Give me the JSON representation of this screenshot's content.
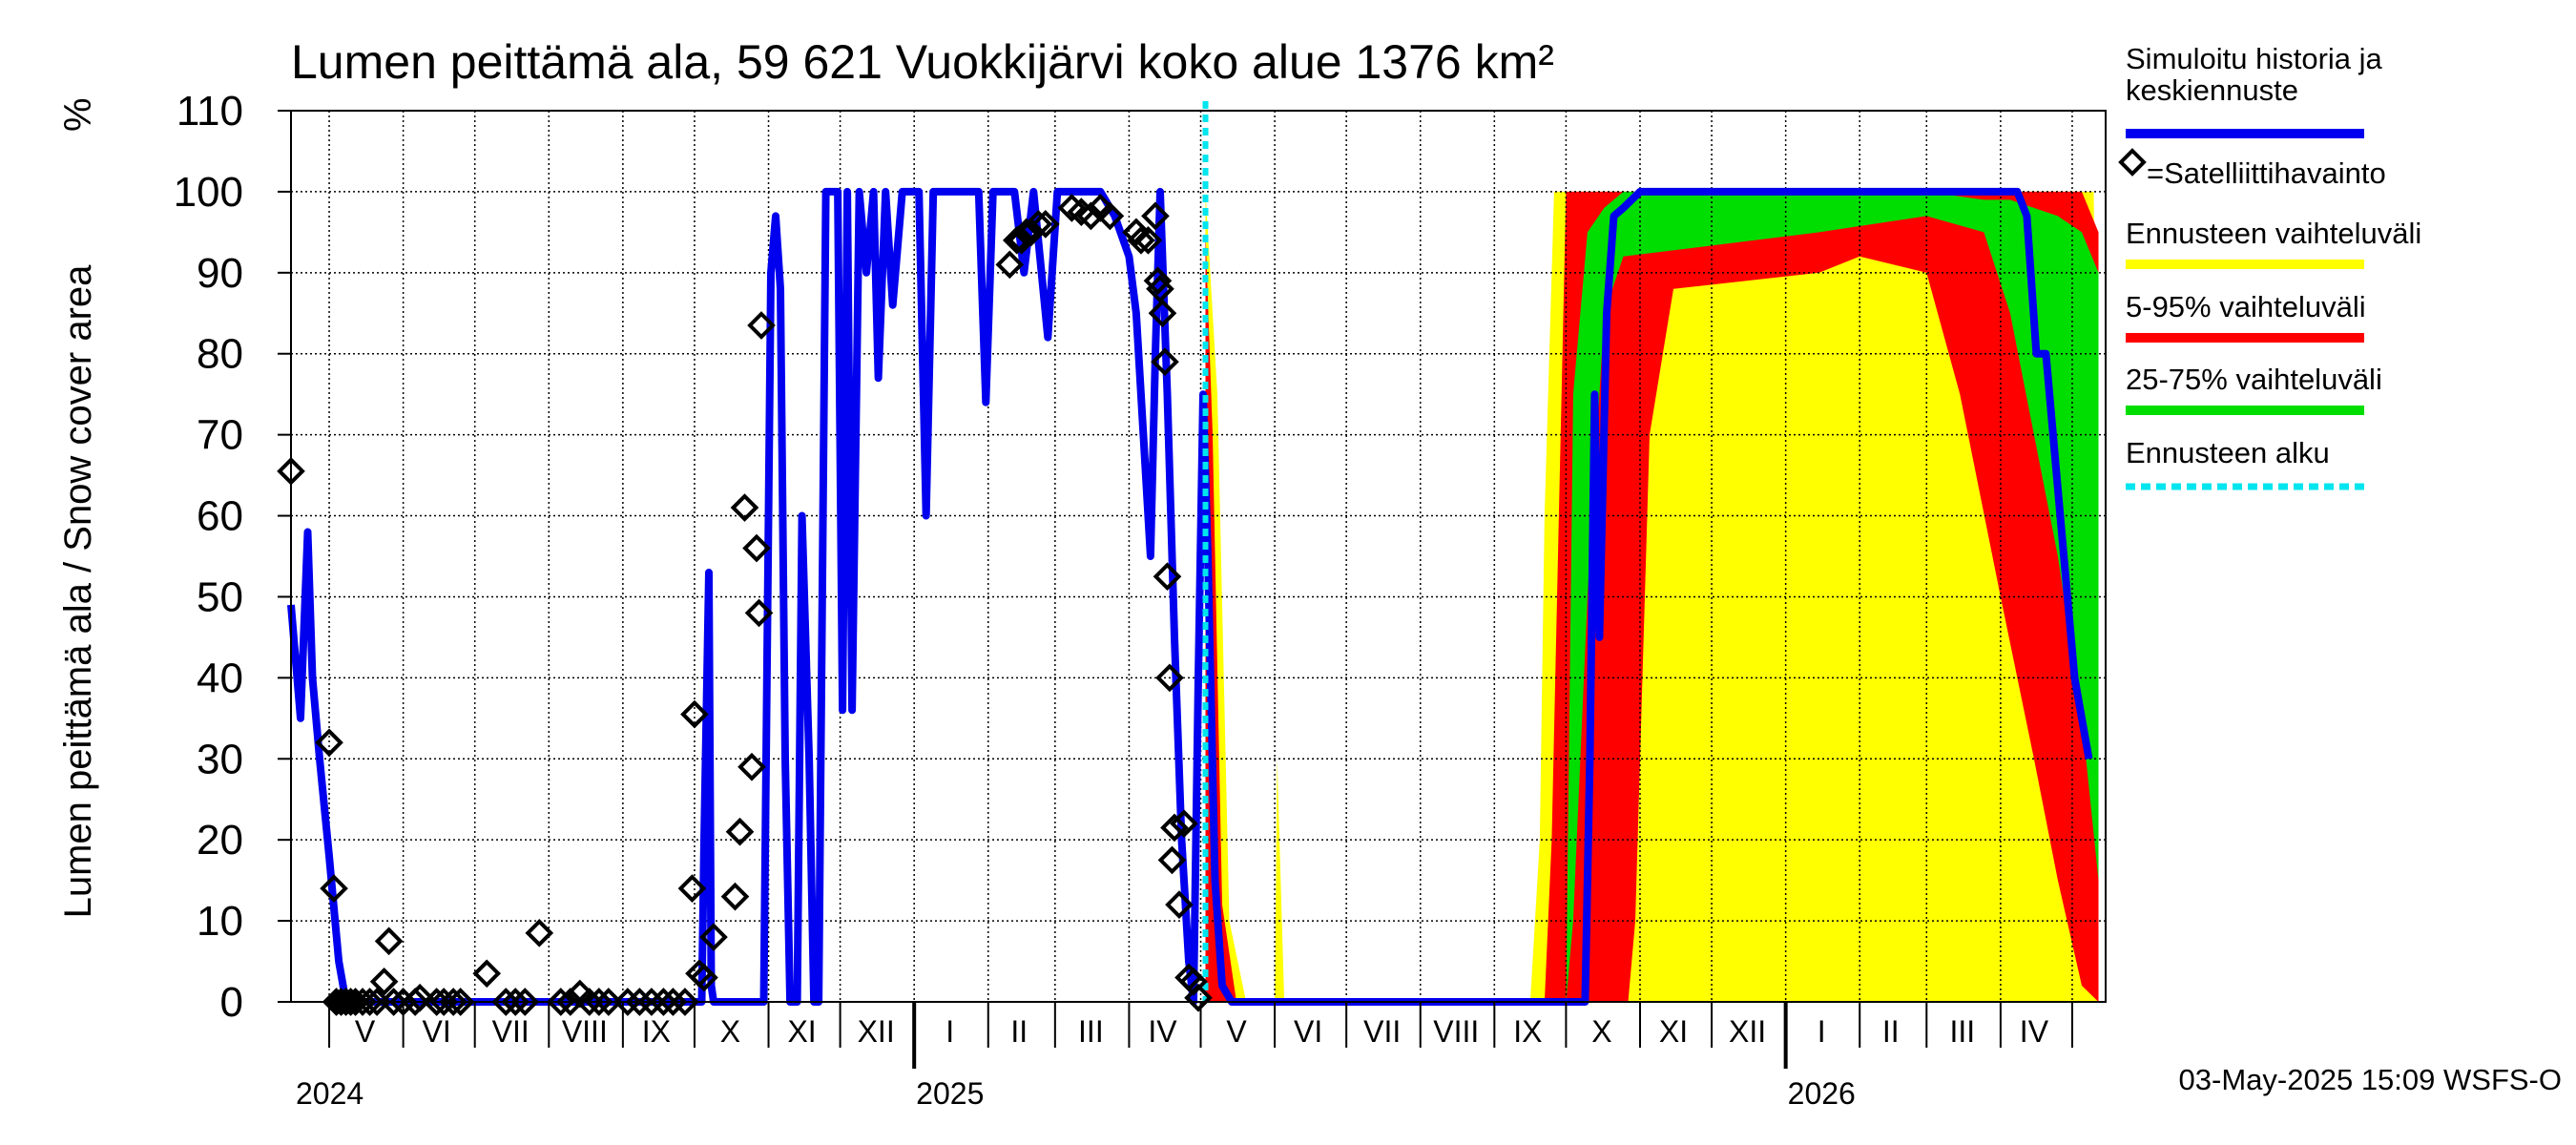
{
  "chart_data": {
    "type": "area",
    "title": "Lumen peittämä ala, 59 621 Vuokkijärvi koko alue 1376 km²",
    "ylabel": "Lumen peittämä ala / Snow cover area",
    "yunit": "%",
    "ylim": [
      0,
      110
    ],
    "yticks": [
      0,
      10,
      20,
      30,
      40,
      50,
      60,
      70,
      80,
      90,
      100,
      110
    ],
    "xlim": [
      "2024-04-15",
      "2026-05-15"
    ],
    "grid": true,
    "legend_position": "right",
    "footer": "03-May-2025 15:09 WSFS-O",
    "forecast_start": "2025-05-03",
    "month_labels": [
      {
        "label": "V",
        "mid": "2024-05-16"
      },
      {
        "label": "VI",
        "mid": "2024-06-15"
      },
      {
        "label": "VII",
        "mid": "2024-07-16"
      },
      {
        "label": "VIII",
        "mid": "2024-08-16"
      },
      {
        "label": "IX",
        "mid": "2024-09-15"
      },
      {
        "label": "X",
        "mid": "2024-10-16"
      },
      {
        "label": "XI",
        "mid": "2024-11-15"
      },
      {
        "label": "XII",
        "mid": "2024-12-16"
      },
      {
        "label": "I",
        "mid": "2025-01-16"
      },
      {
        "label": "II",
        "mid": "2025-02-14"
      },
      {
        "label": "III",
        "mid": "2025-03-16"
      },
      {
        "label": "IV",
        "mid": "2025-04-15"
      },
      {
        "label": "V",
        "mid": "2025-05-16"
      },
      {
        "label": "VI",
        "mid": "2025-06-15"
      },
      {
        "label": "VII",
        "mid": "2025-07-16"
      },
      {
        "label": "VIII",
        "mid": "2025-08-16"
      },
      {
        "label": "IX",
        "mid": "2025-09-15"
      },
      {
        "label": "X",
        "mid": "2025-10-16"
      },
      {
        "label": "XI",
        "mid": "2025-11-15"
      },
      {
        "label": "XII",
        "mid": "2025-12-16"
      },
      {
        "label": "I",
        "mid": "2026-01-16"
      },
      {
        "label": "II",
        "mid": "2026-02-14"
      },
      {
        "label": "III",
        "mid": "2026-03-16"
      },
      {
        "label": "IV",
        "mid": "2026-04-15"
      }
    ],
    "year_labels": [
      {
        "label": "2024",
        "date": "2024-04-15"
      },
      {
        "label": "2025",
        "date": "2025-01-01"
      },
      {
        "label": "2026",
        "date": "2026-01-01"
      }
    ],
    "legend": [
      {
        "label": "Simuloitu historia ja keskiennuste",
        "lines": [
          "Simuloitu historia ja",
          "keskiennuste"
        ],
        "color": "#0000ee",
        "kind": "line"
      },
      {
        "label": "=Satelliittihavainto",
        "lines": [
          "=Satelliittihavainto"
        ],
        "color": "#000000",
        "kind": "diamond"
      },
      {
        "label": "Ennusteen vaihteluväli",
        "lines": [
          "Ennusteen vaihteluväli"
        ],
        "color": "#ffff00",
        "kind": "line"
      },
      {
        "label": "5-95% vaihteluväli",
        "lines": [
          "5-95% vaihteluväli"
        ],
        "color": "#ff0000",
        "kind": "line"
      },
      {
        "label": "25-75% vaihteluväli",
        "lines": [
          "25-75% vaihteluväli"
        ],
        "color": "#00dd00",
        "kind": "line"
      },
      {
        "label": "Ennusteen alku",
        "lines": [
          "Ennusteen alku"
        ],
        "color": "#00e5ee",
        "kind": "dashed"
      }
    ],
    "series": [
      {
        "name": "Simuloitu historia ja keskiennuste",
        "color": "#0000ee",
        "points": [
          [
            "2024-04-15",
            49
          ],
          [
            "2024-04-19",
            35
          ],
          [
            "2024-04-22",
            58
          ],
          [
            "2024-04-24",
            40
          ],
          [
            "2024-04-27",
            30
          ],
          [
            "2024-05-01",
            18
          ],
          [
            "2024-05-05",
            5
          ],
          [
            "2024-05-08",
            0
          ],
          [
            "2024-10-04",
            0
          ],
          [
            "2024-10-05",
            20
          ],
          [
            "2024-10-07",
            53
          ],
          [
            "2024-10-08",
            2
          ],
          [
            "2024-10-09",
            0
          ],
          [
            "2024-10-30",
            0
          ],
          [
            "2024-11-02",
            90
          ],
          [
            "2024-11-04",
            97
          ],
          [
            "2024-11-06",
            88
          ],
          [
            "2024-11-08",
            30
          ],
          [
            "2024-11-10",
            0
          ],
          [
            "2024-11-13",
            0
          ],
          [
            "2024-11-15",
            60
          ],
          [
            "2024-11-18",
            30
          ],
          [
            "2024-11-20",
            0
          ],
          [
            "2024-11-22",
            0
          ],
          [
            "2024-11-25",
            100
          ],
          [
            "2024-11-30",
            100
          ],
          [
            "2024-12-02",
            36
          ],
          [
            "2024-12-04",
            100
          ],
          [
            "2024-12-06",
            36
          ],
          [
            "2024-12-09",
            100
          ],
          [
            "2024-12-12",
            90
          ],
          [
            "2024-12-15",
            100
          ],
          [
            "2024-12-17",
            77
          ],
          [
            "2024-12-20",
            100
          ],
          [
            "2024-12-23",
            86
          ],
          [
            "2024-12-27",
            100
          ],
          [
            "2025-01-03",
            100
          ],
          [
            "2025-01-06",
            60
          ],
          [
            "2025-01-09",
            100
          ],
          [
            "2025-01-28",
            100
          ],
          [
            "2025-01-31",
            74
          ],
          [
            "2025-02-03",
            100
          ],
          [
            "2025-02-12",
            100
          ],
          [
            "2025-02-16",
            90
          ],
          [
            "2025-02-20",
            100
          ],
          [
            "2025-02-26",
            82
          ],
          [
            "2025-03-02",
            100
          ],
          [
            "2025-03-20",
            100
          ],
          [
            "2025-03-26",
            97
          ],
          [
            "2025-04-01",
            92
          ],
          [
            "2025-04-04",
            85
          ],
          [
            "2025-04-07",
            70
          ],
          [
            "2025-04-10",
            55
          ],
          [
            "2025-04-12",
            80
          ],
          [
            "2025-04-14",
            100
          ],
          [
            "2025-04-17",
            75
          ],
          [
            "2025-04-20",
            45
          ],
          [
            "2025-04-23",
            20
          ],
          [
            "2025-04-26",
            5
          ],
          [
            "2025-04-28",
            0
          ],
          [
            "2025-04-30",
            40
          ],
          [
            "2025-05-02",
            75
          ],
          [
            "2025-05-04",
            55
          ],
          [
            "2025-05-07",
            15
          ],
          [
            "2025-05-10",
            2
          ],
          [
            "2025-05-14",
            0
          ],
          [
            "2025-10-09",
            0
          ],
          [
            "2025-10-11",
            30
          ],
          [
            "2025-10-13",
            75
          ],
          [
            "2025-10-15",
            45
          ],
          [
            "2025-10-18",
            85
          ],
          [
            "2025-10-21",
            97
          ],
          [
            "2025-10-25",
            98
          ],
          [
            "2025-11-01",
            100
          ],
          [
            "2026-04-08",
            100
          ],
          [
            "2026-04-12",
            97
          ],
          [
            "2026-04-16",
            80
          ],
          [
            "2026-04-20",
            80
          ],
          [
            "2026-04-26",
            60
          ],
          [
            "2026-05-02",
            40
          ],
          [
            "2026-05-08",
            30
          ]
        ]
      },
      {
        "name": "Satelliittihavainto",
        "color": "#000000",
        "points": [
          [
            "2024-04-15",
            65.5
          ],
          [
            "2024-05-01",
            32
          ],
          [
            "2024-05-03",
            14
          ],
          [
            "2024-05-04",
            0
          ],
          [
            "2024-05-06",
            0
          ],
          [
            "2024-05-08",
            0
          ],
          [
            "2024-05-10",
            0
          ],
          [
            "2024-05-12",
            0
          ],
          [
            "2024-05-15",
            0
          ],
          [
            "2024-05-18",
            0
          ],
          [
            "2024-05-21",
            0
          ],
          [
            "2024-05-24",
            2.5
          ],
          [
            "2024-05-26",
            7.5
          ],
          [
            "2024-05-28",
            0
          ],
          [
            "2024-06-01",
            0
          ],
          [
            "2024-06-06",
            0
          ],
          [
            "2024-06-08",
            0.5
          ],
          [
            "2024-06-15",
            0
          ],
          [
            "2024-06-18",
            0
          ],
          [
            "2024-06-22",
            0
          ],
          [
            "2024-06-25",
            0
          ],
          [
            "2024-07-06",
            3.5
          ],
          [
            "2024-07-14",
            0
          ],
          [
            "2024-07-18",
            0
          ],
          [
            "2024-07-22",
            0
          ],
          [
            "2024-07-28",
            8.5
          ],
          [
            "2024-08-06",
            0
          ],
          [
            "2024-08-10",
            0
          ],
          [
            "2024-08-14",
            1
          ],
          [
            "2024-08-18",
            0
          ],
          [
            "2024-08-22",
            0
          ],
          [
            "2024-08-26",
            0
          ],
          [
            "2024-09-03",
            0
          ],
          [
            "2024-09-08",
            0
          ],
          [
            "2024-09-13",
            0
          ],
          [
            "2024-09-18",
            0
          ],
          [
            "2024-09-22",
            0
          ],
          [
            "2024-09-27",
            0
          ],
          [
            "2024-09-30",
            14
          ],
          [
            "2024-10-01",
            35.5
          ],
          [
            "2024-10-03",
            3.5
          ],
          [
            "2024-10-05",
            3
          ],
          [
            "2024-10-09",
            8
          ],
          [
            "2024-10-18",
            13
          ],
          [
            "2024-10-20",
            21
          ],
          [
            "2024-10-22",
            61
          ],
          [
            "2024-10-25",
            29
          ],
          [
            "2024-10-27",
            56
          ],
          [
            "2024-10-28",
            48
          ],
          [
            "2024-10-29",
            83.5
          ],
          [
            "2025-02-10",
            91
          ],
          [
            "2025-02-13",
            94
          ],
          [
            "2025-02-15",
            94
          ],
          [
            "2025-02-17",
            95
          ],
          [
            "2025-02-19",
            95
          ],
          [
            "2025-02-22",
            96
          ],
          [
            "2025-02-25",
            96
          ],
          [
            "2025-03-08",
            98
          ],
          [
            "2025-03-12",
            97.5
          ],
          [
            "2025-03-16",
            97
          ],
          [
            "2025-03-20",
            98
          ],
          [
            "2025-03-24",
            97
          ],
          [
            "2025-04-04",
            95
          ],
          [
            "2025-04-06",
            94
          ],
          [
            "2025-04-09",
            94
          ],
          [
            "2025-04-12",
            97
          ],
          [
            "2025-04-13",
            89
          ],
          [
            "2025-04-14",
            88
          ],
          [
            "2025-04-15",
            85
          ],
          [
            "2025-04-16",
            79
          ],
          [
            "2025-04-17",
            52.5
          ],
          [
            "2025-04-18",
            40
          ],
          [
            "2025-04-19",
            17.5
          ],
          [
            "2025-04-20",
            21.5
          ],
          [
            "2025-04-22",
            12
          ],
          [
            "2025-04-24",
            22
          ],
          [
            "2025-04-26",
            3
          ],
          [
            "2025-04-28",
            2.5
          ],
          [
            "2025-04-30",
            0.5
          ]
        ]
      }
    ],
    "bands": [
      {
        "name": "Ennusteen vaihteluväli",
        "color": "#ffff00",
        "points": [
          [
            "2025-05-03",
            0,
            100
          ],
          [
            "2025-05-08",
            0,
            75
          ],
          [
            "2025-05-13",
            0,
            10
          ],
          [
            "2025-05-20",
            0,
            0
          ],
          [
            "2025-06-01",
            0,
            0
          ],
          [
            "2025-06-02",
            0,
            30
          ],
          [
            "2025-06-05",
            0,
            0
          ],
          [
            "2025-09-16",
            0,
            0
          ],
          [
            "2025-09-17",
            0,
            5
          ],
          [
            "2025-09-20",
            0,
            20
          ],
          [
            "2025-09-22",
            0,
            60
          ],
          [
            "2025-09-26",
            0,
            100
          ],
          [
            "2026-05-10",
            0,
            100
          ],
          [
            "2026-05-12",
            0,
            40
          ]
        ]
      },
      {
        "name": "5-95% vaihteluväli",
        "color": "#ff0000",
        "points": [
          [
            "2025-05-03",
            0,
            95
          ],
          [
            "2025-05-06",
            0,
            70
          ],
          [
            "2025-05-10",
            0,
            12
          ],
          [
            "2025-05-16",
            0,
            0
          ],
          [
            "2025-09-22",
            0,
            0
          ],
          [
            "2025-09-25",
            0,
            20
          ],
          [
            "2025-09-28",
            0,
            60
          ],
          [
            "2025-10-01",
            0,
            100
          ],
          [
            "2025-10-27",
            0,
            100
          ],
          [
            "2025-10-30",
            10,
            100
          ],
          [
            "2025-11-05",
            70,
            100
          ],
          [
            "2025-11-15",
            88,
            100
          ],
          [
            "2026-01-15",
            90,
            100
          ],
          [
            "2026-02-01",
            92,
            100
          ],
          [
            "2026-03-01",
            90,
            100
          ],
          [
            "2026-03-15",
            75,
            100
          ],
          [
            "2026-04-01",
            50,
            100
          ],
          [
            "2026-04-15",
            30,
            100
          ],
          [
            "2026-04-25",
            15,
            100
          ],
          [
            "2026-05-05",
            2,
            100
          ],
          [
            "2026-05-12",
            0,
            95
          ]
        ]
      },
      {
        "name": "25-75% vaihteluväli",
        "color": "#00dd00",
        "points": [
          [
            "2025-10-01",
            0,
            0
          ],
          [
            "2025-10-04",
            10,
            75
          ],
          [
            "2025-10-10",
            50,
            95
          ],
          [
            "2025-10-17",
            85,
            98
          ],
          [
            "2025-10-25",
            92,
            100
          ],
          [
            "2026-01-15",
            95,
            100
          ],
          [
            "2026-03-01",
            97,
            100
          ],
          [
            "2026-03-25",
            95,
            99
          ],
          [
            "2026-04-05",
            85,
            99
          ],
          [
            "2026-04-15",
            70,
            98
          ],
          [
            "2026-04-25",
            55,
            97
          ],
          [
            "2026-05-05",
            35,
            95
          ],
          [
            "2026-05-12",
            15,
            90
          ]
        ]
      }
    ]
  }
}
